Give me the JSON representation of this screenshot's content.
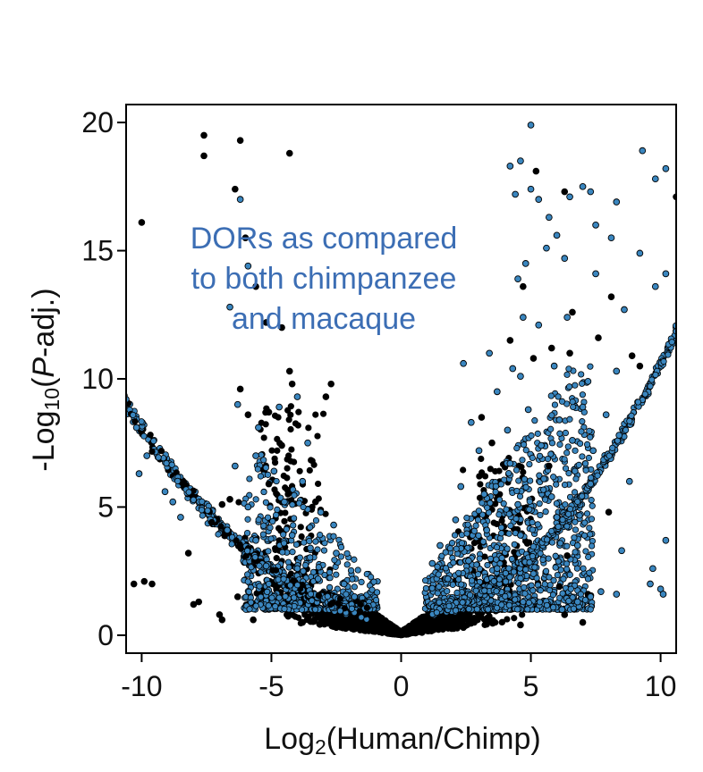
{
  "chart_data": {
    "type": "scatter",
    "title": "",
    "xlabel": {
      "prefix": "Log",
      "sub": "2",
      "suffix": "(Human/Chimp)"
    },
    "ylabel": {
      "prefix": "-Log",
      "sub": "10",
      "open": "(",
      "italic": "P",
      "suffix": "-adj.)"
    },
    "xlim": [
      -10.6,
      10.6
    ],
    "ylim": [
      -0.7,
      20.7
    ],
    "xticks": [
      -10,
      -5,
      0,
      5,
      10
    ],
    "xtick_labels": [
      "-10",
      "-5",
      "0",
      "5",
      "10"
    ],
    "yticks": [
      0,
      5,
      10,
      15,
      20
    ],
    "ytick_labels": [
      "0",
      "5",
      "10",
      "15",
      "20"
    ],
    "grid": false,
    "annotation": {
      "lines": [
        "DORs as compared",
        "to both chimpanzee",
        "and macaque"
      ],
      "color": "#3c6eb4"
    },
    "series": [
      {
        "color": "#000000"
      },
      {
        "color": "#3a86bf"
      }
    ],
    "points_black": [
      [
        -7.6,
        19.5
      ],
      [
        -7.6,
        18.7
      ],
      [
        -6.2,
        19.3
      ],
      [
        -4.3,
        18.8
      ],
      [
        -6.4,
        17.4
      ],
      [
        -10.0,
        16.1
      ],
      [
        -6.0,
        15.5
      ],
      [
        -5.6,
        13.6
      ],
      [
        -5.2,
        12.2
      ],
      [
        -4.6,
        12.0
      ],
      [
        -4.3,
        10.3
      ],
      [
        -4.2,
        9.8
      ],
      [
        -2.7,
        9.8
      ],
      [
        -2.9,
        9.3
      ],
      [
        -6.2,
        9.6
      ],
      [
        -5.9,
        8.6
      ],
      [
        -5.1,
        8.7
      ],
      [
        -4.6,
        7.4
      ],
      [
        -3.3,
        5.2
      ],
      [
        -5.1,
        5.9
      ],
      [
        -6.9,
        5.1
      ],
      [
        -6.6,
        5.3
      ],
      [
        -8.2,
        3.2
      ],
      [
        -7.3,
        4.4
      ],
      [
        -10.3,
        2.0
      ],
      [
        -9.9,
        2.1
      ],
      [
        -9.6,
        2.0
      ],
      [
        -7.8,
        1.3
      ],
      [
        -8.0,
        1.2
      ],
      [
        -6.3,
        1.5
      ],
      [
        -7.0,
        0.8
      ],
      [
        -6.9,
        0.6
      ],
      [
        -5.7,
        0.6
      ],
      [
        -4.4,
        0.8
      ],
      [
        -3.8,
        0.5
      ],
      [
        5.2,
        18.1
      ],
      [
        6.3,
        17.3
      ],
      [
        4.7,
        13.6
      ],
      [
        6.6,
        12.6
      ],
      [
        8.1,
        13.2
      ],
      [
        8.9,
        10.9
      ],
      [
        5.1,
        10.8
      ],
      [
        4.2,
        11.5
      ],
      [
        5.8,
        11.2
      ],
      [
        6.5,
        11.0
      ],
      [
        7.6,
        11.6
      ],
      [
        9.2,
        10.5
      ],
      [
        10.6,
        17.1
      ],
      [
        3.1,
        8.5
      ],
      [
        3.5,
        7.5
      ],
      [
        5.7,
        6.6
      ],
      [
        8.0,
        4.8
      ],
      [
        6.4,
        3.1
      ],
      [
        6.1,
        1.9
      ],
      [
        7.2,
        1.6
      ],
      [
        6.3,
        0.8
      ],
      [
        7.0,
        0.5
      ],
      [
        4.6,
        0.4
      ],
      [
        -2.5,
        0.3
      ],
      [
        2.4,
        0.3
      ]
    ],
    "points_blue": [
      [
        5.0,
        19.9
      ],
      [
        9.3,
        18.9
      ],
      [
        4.6,
        18.5
      ],
      [
        4.2,
        18.3
      ],
      [
        4.4,
        17.2
      ],
      [
        5.0,
        17.4
      ],
      [
        5.3,
        17.0
      ],
      [
        6.5,
        17.1
      ],
      [
        7.0,
        17.5
      ],
      [
        7.3,
        17.3
      ],
      [
        7.5,
        16.0
      ],
      [
        9.8,
        17.8
      ],
      [
        10.2,
        18.2
      ],
      [
        5.7,
        16.3
      ],
      [
        6.0,
        15.6
      ],
      [
        8.1,
        15.5
      ],
      [
        8.3,
        16.9
      ],
      [
        9.2,
        14.9
      ],
      [
        10.2,
        14.1
      ],
      [
        4.8,
        14.5
      ],
      [
        4.5,
        13.9
      ],
      [
        4.7,
        12.4
      ],
      [
        5.6,
        15.1
      ],
      [
        6.3,
        14.7
      ],
      [
        7.5,
        14.1
      ],
      [
        5.3,
        12.1
      ],
      [
        6.4,
        12.4
      ],
      [
        8.6,
        12.7
      ],
      [
        9.8,
        13.6
      ],
      [
        3.4,
        11.0
      ],
      [
        4.3,
        10.4
      ],
      [
        4.6,
        10.1
      ],
      [
        5.9,
        10.5
      ],
      [
        7.2,
        9.9
      ],
      [
        8.3,
        10.3
      ],
      [
        2.4,
        10.6
      ],
      [
        3.7,
        9.5
      ],
      [
        4.9,
        8.8
      ],
      [
        6.1,
        8.4
      ],
      [
        7.0,
        8.9
      ],
      [
        7.9,
        8.6
      ],
      [
        2.7,
        8.3
      ],
      [
        4.1,
        8.0
      ],
      [
        5.4,
        7.4
      ],
      [
        6.6,
        7.6
      ],
      [
        7.4,
        7.2
      ],
      [
        8.4,
        7.8
      ],
      [
        3.0,
        7.2
      ],
      [
        4.2,
        6.7
      ],
      [
        5.5,
        6.1
      ],
      [
        6.7,
        6.4
      ],
      [
        2.3,
        5.8
      ],
      [
        3.2,
        5.5
      ],
      [
        4.5,
        5.1
      ],
      [
        5.8,
        5.4
      ],
      [
        7.3,
        5.9
      ],
      [
        8.8,
        6.0
      ],
      [
        2.1,
        4.5
      ],
      [
        3.3,
        4.1
      ],
      [
        4.6,
        3.9
      ],
      [
        6.0,
        4.6
      ],
      [
        6.8,
        3.5
      ],
      [
        8.5,
        3.3
      ],
      [
        9.7,
        2.6
      ],
      [
        10.2,
        3.7
      ],
      [
        9.6,
        2.0
      ],
      [
        10.0,
        1.8
      ],
      [
        10.1,
        1.6
      ],
      [
        8.3,
        1.6
      ],
      [
        7.7,
        1.7
      ],
      [
        7.3,
        1.5
      ],
      [
        6.8,
        1.3
      ],
      [
        6.2,
        1.0
      ],
      [
        1.2,
        2.8
      ],
      [
        1.5,
        3.5
      ],
      [
        1.8,
        2.2
      ],
      [
        2.6,
        2.9
      ],
      [
        3.7,
        2.6
      ],
      [
        5.1,
        2.4
      ],
      [
        -6.2,
        17.0
      ],
      [
        -6.6,
        12.8
      ],
      [
        -5.9,
        14.4
      ],
      [
        -6.3,
        9.0
      ],
      [
        -5.5,
        8.1
      ],
      [
        -4.7,
        8.9
      ],
      [
        -4.0,
        9.3
      ],
      [
        -3.6,
        7.5
      ],
      [
        -5.6,
        7.0
      ],
      [
        -4.9,
        6.4
      ],
      [
        -3.8,
        6.0
      ],
      [
        -6.4,
        6.6
      ],
      [
        -5.9,
        5.0
      ],
      [
        -4.5,
        5.2
      ],
      [
        -3.1,
        4.8
      ],
      [
        -2.6,
        4.3
      ],
      [
        -6.7,
        4.1
      ],
      [
        -5.6,
        3.7
      ],
      [
        -4.2,
        3.9
      ],
      [
        -3.5,
        3.4
      ],
      [
        -2.5,
        3.2
      ],
      [
        -5.2,
        2.7
      ],
      [
        -4.0,
        2.6
      ],
      [
        -3.2,
        2.2
      ],
      [
        -2.2,
        2.0
      ],
      [
        -1.8,
        1.5
      ],
      [
        -10.6,
        9.2
      ],
      [
        -10.2,
        8.1
      ],
      [
        -9.8,
        7.0
      ],
      [
        -9.1,
        5.6
      ],
      [
        -8.5,
        4.6
      ],
      [
        -10.1,
        6.3
      ],
      [
        -8.8,
        5.2
      ]
    ]
  }
}
